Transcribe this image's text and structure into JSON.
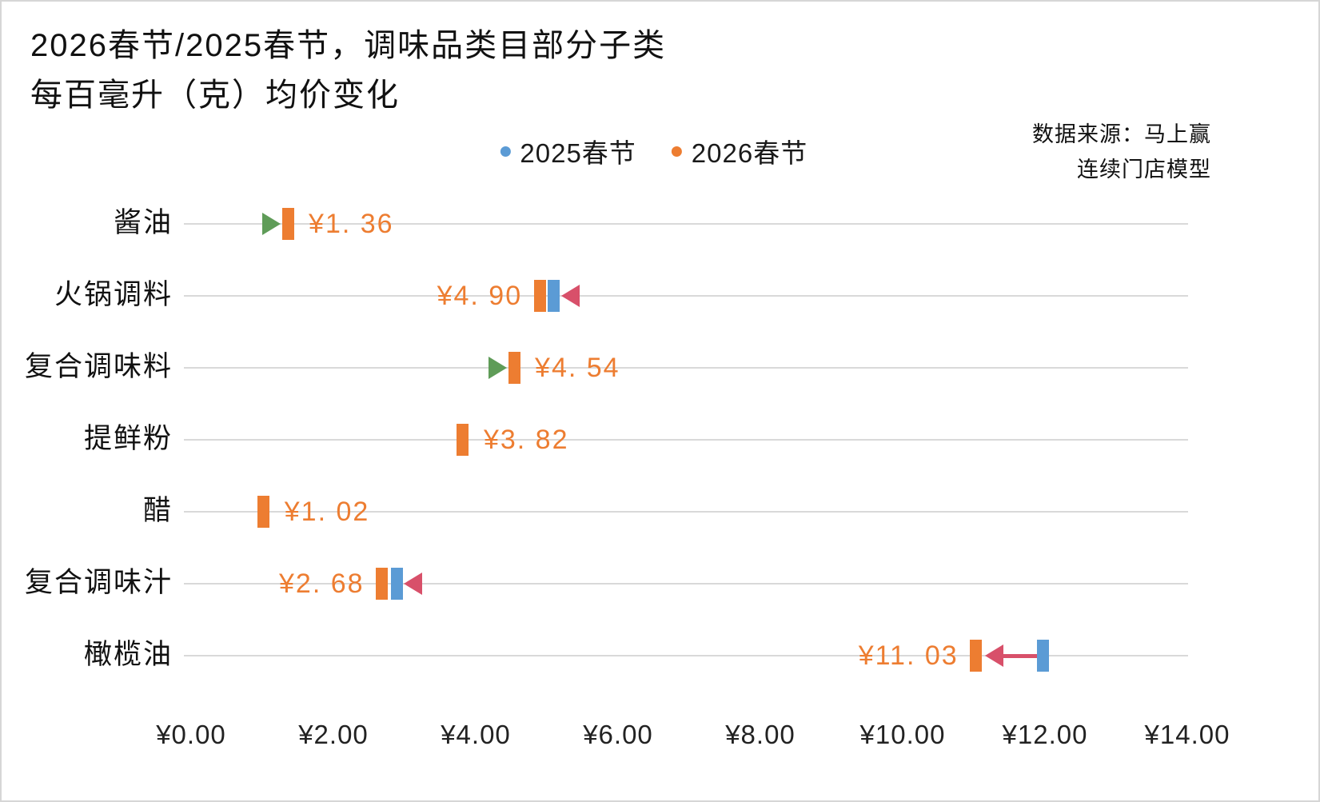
{
  "title": {
    "line1": "2026春节/2025春节，调味品类目部分子类",
    "line2": "每百毫升（克）均价变化"
  },
  "legend": {
    "items": [
      {
        "label": "2025春节",
        "color": "#5B9BD5"
      },
      {
        "label": "2026春节",
        "color": "#ED7D31"
      }
    ]
  },
  "source": {
    "line1": "数据来源：马上赢",
    "line2": "连续门店模型"
  },
  "chart_data": {
    "type": "scatter",
    "title": "2026春节/2025春节，调味品类目部分子类 每百毫升（克）均价变化",
    "xlabel": "",
    "ylabel": "",
    "xlim": [
      0,
      14
    ],
    "x_tick_values": [
      0,
      2,
      4,
      6,
      8,
      10,
      12,
      14
    ],
    "x_ticks": [
      "¥0.00",
      "¥2.00",
      "¥4.00",
      "¥6.00",
      "¥8.00",
      "¥10.00",
      "¥12.00",
      "¥14.00"
    ],
    "grid": "horizontal",
    "legend_position": "top-center",
    "categories": [
      "酱油",
      "火锅调料",
      "复合调味料",
      "提鲜粉",
      "醋",
      "复合调味汁",
      "橄榄油"
    ],
    "series": [
      {
        "name": "2025春节",
        "color": "#5B9BD5",
        "values": [
          1.21,
          5.1,
          4.35,
          3.82,
          1.02,
          2.89,
          11.97
        ]
      },
      {
        "name": "2026春节",
        "color": "#ED7D31",
        "values": [
          1.36,
          4.9,
          4.54,
          3.82,
          1.02,
          2.68,
          11.03
        ]
      }
    ],
    "rows": [
      {
        "category": "酱油",
        "value_2025": 1.21,
        "value_2026": 1.36,
        "label": "¥1. 36",
        "label_side": "right",
        "change": "up"
      },
      {
        "category": "火锅调料",
        "value_2025": 5.1,
        "value_2026": 4.9,
        "label": "¥4. 90",
        "label_side": "left",
        "change": "down"
      },
      {
        "category": "复合调味料",
        "value_2025": 4.35,
        "value_2026": 4.54,
        "label": "¥4. 54",
        "label_side": "right",
        "change": "up"
      },
      {
        "category": "提鲜粉",
        "value_2025": 3.82,
        "value_2026": 3.82,
        "label": "¥3. 82",
        "label_side": "right",
        "change": "none"
      },
      {
        "category": "醋",
        "value_2025": 1.02,
        "value_2026": 1.02,
        "label": "¥1. 02",
        "label_side": "right",
        "change": "none"
      },
      {
        "category": "复合调味汁",
        "value_2025": 2.89,
        "value_2026": 2.68,
        "label": "¥2. 68",
        "label_side": "left",
        "change": "down"
      },
      {
        "category": "橄榄油",
        "value_2025": 11.97,
        "value_2026": 11.03,
        "label": "¥11. 03",
        "label_side": "left",
        "change": "down"
      }
    ],
    "colors": {
      "c2025": "#5B9BD5",
      "c2026": "#ED7D31",
      "up": "#5F9C58",
      "down": "#D8506A",
      "gridline": "#D9D9D9"
    }
  }
}
